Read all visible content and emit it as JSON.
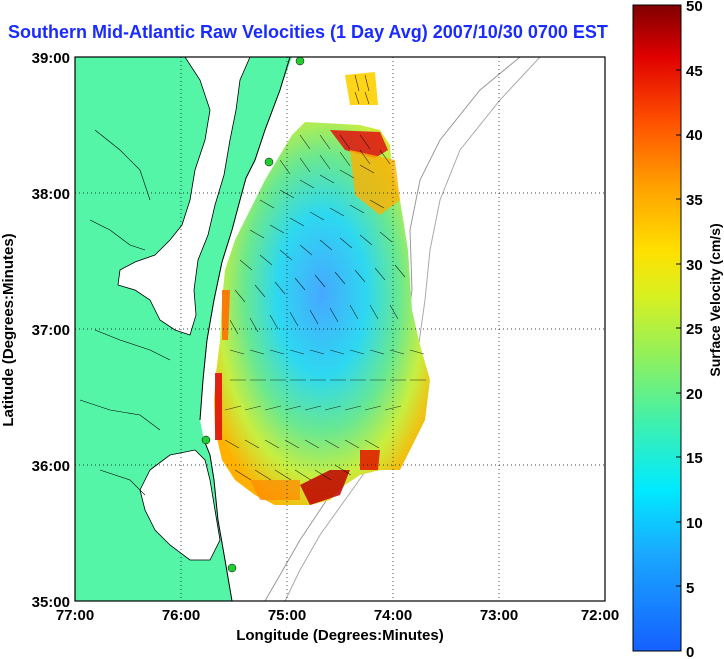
{
  "title": "Southern Mid-Atlantic Raw Velocities (1 Day Avg) 2007/10/30 0700 EST",
  "axes": {
    "xlabel": "Longitude (Degrees:Minutes)",
    "ylabel": "Latitude (Degrees:Minutes)",
    "xticks": [
      "77:00",
      "76:00",
      "75:00",
      "74:00",
      "73:00",
      "72:00"
    ],
    "yticks": [
      "39:00",
      "38:00",
      "37:00",
      "36:00",
      "35:00"
    ],
    "xlim": [
      -77,
      -72
    ],
    "ylim": [
      35,
      39
    ]
  },
  "colorbar": {
    "label": "Surface Velocity (cm/s)",
    "ticks": [
      "50",
      "45",
      "40",
      "35",
      "30",
      "25",
      "20",
      "15",
      "10",
      "5",
      "0"
    ],
    "range": [
      0,
      50
    ]
  },
  "colors": {
    "land": "#55f5a8",
    "water": "#ffffff",
    "title": "#1a2bff",
    "station": "#22cc33"
  }
}
